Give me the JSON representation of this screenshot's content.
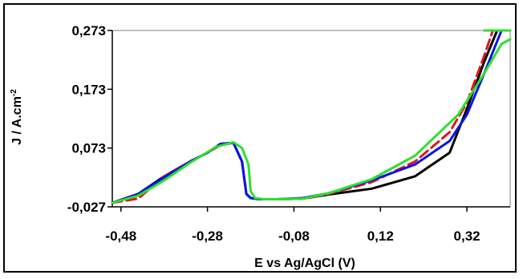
{
  "chart_data": {
    "type": "line",
    "xlabel": "E vs Ag/AgCl (V)",
    "ylabel_main": "J / A.cm",
    "ylabel_sup": "-2",
    "xlim": [
      -0.5,
      0.42
    ],
    "ylim": [
      -0.027,
      0.273
    ],
    "x_ticks": [
      -0.48,
      -0.28,
      -0.08,
      0.12,
      0.32
    ],
    "x_tick_labels": [
      "-0,48",
      "-0,28",
      "-0,08",
      "0,12",
      "0,32"
    ],
    "y_ticks": [
      -0.027,
      0.073,
      0.173,
      0.273
    ],
    "y_tick_labels": [
      "-0,027",
      "0,073",
      "0,173",
      "0,273"
    ],
    "grid": false,
    "legend": "none",
    "series": [
      {
        "color": "#000000",
        "dash": false,
        "x": [
          -0.5,
          -0.44,
          -0.38,
          -0.32,
          -0.28,
          -0.25,
          -0.22,
          -0.2,
          -0.19,
          -0.18,
          -0.16,
          -0.12,
          -0.06,
          0.0,
          0.1,
          0.2,
          0.28,
          0.32,
          0.36,
          0.39
        ],
        "y": [
          -0.02,
          -0.005,
          0.025,
          0.05,
          0.065,
          0.08,
          0.082,
          0.05,
          -0.005,
          -0.012,
          -0.014,
          -0.014,
          -0.013,
          -0.006,
          0.004,
          0.025,
          0.065,
          0.14,
          0.22,
          0.273
        ]
      },
      {
        "color": "#e0141e",
        "dash": true,
        "x": [
          -0.5,
          -0.44,
          -0.38,
          -0.32,
          -0.28,
          -0.25,
          -0.22,
          -0.2,
          -0.19,
          -0.18,
          -0.16,
          -0.12,
          -0.06,
          0.0,
          0.1,
          0.2,
          0.28,
          0.32,
          0.36,
          0.38
        ],
        "y": [
          -0.02,
          -0.013,
          0.025,
          0.05,
          0.065,
          0.078,
          0.082,
          0.05,
          -0.005,
          -0.012,
          -0.014,
          -0.014,
          -0.013,
          -0.005,
          0.015,
          0.05,
          0.1,
          0.15,
          0.23,
          0.273
        ]
      },
      {
        "color": "#0a14e6",
        "dash": false,
        "x": [
          -0.5,
          -0.44,
          -0.38,
          -0.32,
          -0.28,
          -0.25,
          -0.22,
          -0.2,
          -0.19,
          -0.18,
          -0.16,
          -0.12,
          -0.06,
          0.0,
          0.1,
          0.2,
          0.28,
          0.32,
          0.36,
          0.4
        ],
        "y": [
          -0.02,
          -0.005,
          0.023,
          0.05,
          0.065,
          0.08,
          0.082,
          0.05,
          -0.005,
          -0.012,
          -0.014,
          -0.014,
          -0.012,
          -0.004,
          0.018,
          0.045,
          0.085,
          0.13,
          0.2,
          0.273
        ]
      },
      {
        "color": "#2ce02c",
        "dash": false,
        "x": [
          -0.5,
          -0.44,
          -0.38,
          -0.32,
          -0.26,
          -0.22,
          -0.2,
          -0.185,
          -0.18,
          -0.17,
          -0.15,
          -0.12,
          -0.06,
          0.0,
          0.1,
          0.2,
          0.3,
          0.36,
          0.4,
          0.42
        ],
        "y": [
          -0.02,
          -0.008,
          0.018,
          0.048,
          0.075,
          0.083,
          0.073,
          0.045,
          0.0,
          -0.012,
          -0.014,
          -0.014,
          -0.013,
          -0.004,
          0.02,
          0.06,
          0.13,
          0.2,
          0.25,
          0.258
        ]
      },
      {
        "color": "#2ce02c",
        "dash": false,
        "x": [
          0.36,
          0.42
        ],
        "y": [
          0.273,
          0.273
        ]
      }
    ]
  }
}
